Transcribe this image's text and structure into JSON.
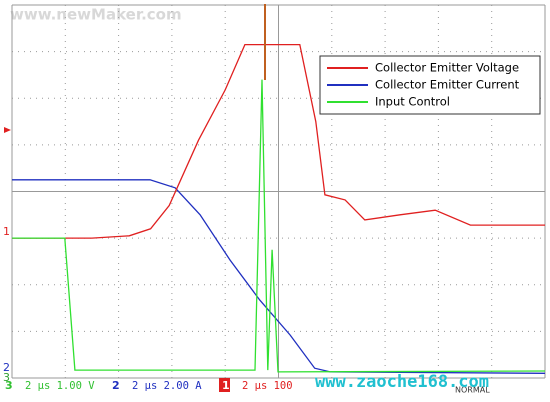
{
  "chart_data": {
    "type": "line",
    "xlim": [
      0,
      10
    ],
    "ylim": [
      0,
      8
    ],
    "xticks": [
      0,
      1,
      2,
      3,
      4,
      5,
      6,
      7,
      8,
      9,
      10
    ],
    "yticks": [
      0,
      1,
      2,
      3,
      4,
      5,
      6,
      7,
      8
    ],
    "grid": true,
    "legend": "top-right",
    "series": [
      {
        "name": "Collector Emitter Voltage",
        "color": "#e02020",
        "x": [
          0,
          1.5,
          2.2,
          2.6,
          2.95,
          3.5,
          4.0,
          4.37,
          5.4,
          5.7,
          5.87,
          6.25,
          6.62,
          7.28,
          7.94,
          8.6,
          10
        ],
        "values": [
          3.0,
          3.0,
          3.05,
          3.2,
          3.7,
          5.1,
          6.18,
          7.15,
          7.15,
          5.5,
          3.93,
          3.82,
          3.39,
          3.5,
          3.6,
          3.28,
          3.28
        ]
      },
      {
        "name": "Collector Emitter Current",
        "color": "#2030c0",
        "x": [
          0,
          2.59,
          3.06,
          3.53,
          4.09,
          4.65,
          5.22,
          5.68,
          5.97,
          10
        ],
        "values": [
          4.25,
          4.25,
          4.08,
          3.5,
          2.53,
          1.67,
          0.92,
          0.21,
          0.13,
          0.1
        ]
      },
      {
        "name": "Input Control",
        "color": "#30e030",
        "x": [
          0,
          0.99,
          1.18,
          4.56,
          4.69,
          4.8,
          4.88,
          4.99,
          10
        ],
        "values": [
          3.0,
          3.0,
          0.17,
          0.17,
          6.4,
          0.17,
          2.75,
          0.13,
          0.15
        ]
      }
    ],
    "channel_markers": [
      "1",
      "2",
      "3"
    ],
    "status": [
      {
        "channel": "3",
        "text": "2 μs 1.00 V"
      },
      {
        "channel": "2",
        "text": "2 μs 2.00 A"
      },
      {
        "channel": "1",
        "text": "2 μs 100"
      }
    ],
    "mode": "NORMAL",
    "watermarks": [
      "www.newMaker.com",
      "www.zaoche168.com"
    ]
  }
}
